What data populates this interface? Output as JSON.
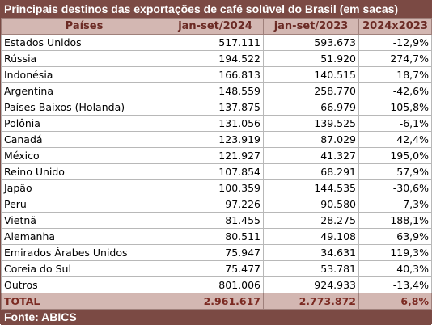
{
  "title": "Principais destinos das exportações de café solúvel do Brasil (em sacas)",
  "headers": [
    "Países",
    "jan-set/2024",
    "jan-set/2023",
    "2024x2023"
  ],
  "rows": [
    [
      "Estados Unidos",
      "517.111",
      "593.673",
      "-12,9%"
    ],
    [
      "Rússia",
      "194.522",
      "51.920",
      "274,7%"
    ],
    [
      "Indonésia",
      "166.813",
      "140.515",
      "18,7%"
    ],
    [
      "Argentina",
      "148.559",
      "258.770",
      "-42,6%"
    ],
    [
      "Países Baixos (Holanda)",
      "137.875",
      "66.979",
      "105,8%"
    ],
    [
      "Polônia",
      "131.056",
      "139.525",
      "-6,1%"
    ],
    [
      "Canadá",
      "123.919",
      "87.029",
      "42,4%"
    ],
    [
      "México",
      "121.927",
      "41.327",
      "195,0%"
    ],
    [
      "Reino Unido",
      "107.854",
      "68.291",
      "57,9%"
    ],
    [
      "Japão",
      "100.359",
      "144.535",
      "-30,6%"
    ],
    [
      "Peru",
      "97.226",
      "90.580",
      "7,3%"
    ],
    [
      "Vietnã",
      "81.455",
      "28.275",
      "188,1%"
    ],
    [
      "Alemanha",
      "80.511",
      "49.108",
      "63,9%"
    ],
    [
      "Emirados Árabes Unidos",
      "75.947",
      "34.631",
      "119,3%"
    ],
    [
      "Coreia do Sul",
      "75.477",
      "53.781",
      "40,3%"
    ],
    [
      "Outros",
      "801.006",
      "924.933",
      "-13,4%"
    ]
  ],
  "total": [
    "TOTAL",
    "2.961.617",
    "2.773.872",
    "6,8%"
  ],
  "footer": "Fonte: ABICS",
  "colors": {
    "header_bar": "#7b4a44",
    "header_row": "#d3b7b2",
    "header_text": "#6b2a24"
  }
}
